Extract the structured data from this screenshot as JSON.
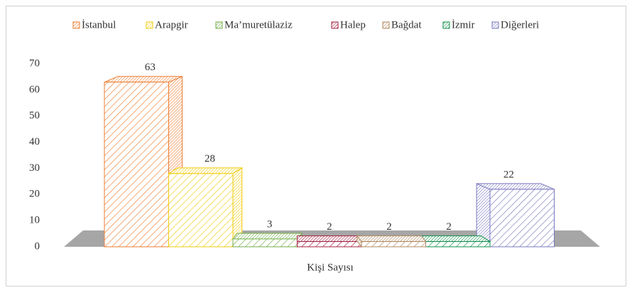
{
  "chart_data": {
    "type": "bar3d",
    "categories": [
      "Kişi Sayısı"
    ],
    "series": [
      {
        "name": "İstanbul",
        "color": "#ed7d31",
        "values": [
          63
        ]
      },
      {
        "name": "Arapgir",
        "color": "#f2cc0c",
        "values": [
          28
        ]
      },
      {
        "name": "Ma’muretülaziz",
        "color": "#70ad47",
        "values": [
          3
        ]
      },
      {
        "name": "Halep",
        "color": "#a5203f",
        "values": [
          2
        ]
      },
      {
        "name": "Bağdat",
        "color": "#b08860",
        "values": [
          2
        ]
      },
      {
        "name": "İzmir",
        "color": "#0f8f4a",
        "values": [
          2
        ]
      },
      {
        "name": "Diğerleri",
        "color": "#7a78c0",
        "values": [
          22
        ]
      }
    ],
    "ylim": [
      0,
      70
    ],
    "yticks": [
      0,
      10,
      20,
      30,
      40,
      50,
      60,
      70
    ],
    "legend": "top"
  }
}
